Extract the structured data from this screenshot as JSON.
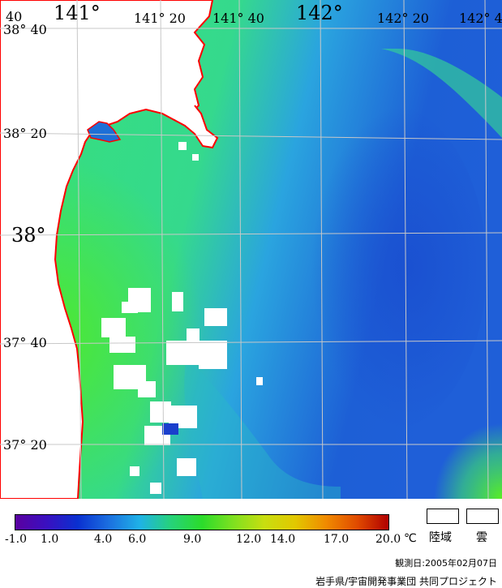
{
  "map": {
    "colors": {
      "land": "#ffffff",
      "coastline": "#ff0000",
      "grid": "#c8c8c8",
      "cloud": "#ffffff",
      "sea_warm_south": "#55ee2a",
      "sea_mid": "#33dd66",
      "sea_cool": "#2f9be8",
      "sea_cold": "#1f5fd8"
    },
    "longitude_labels": [
      "141°",
      "141° 20",
      "141° 40",
      "142°",
      "142° 20",
      "142° 4"
    ],
    "latitude_labels": [
      "38° 40",
      "38° 20",
      "38°",
      "37° 40",
      "37° 20"
    ],
    "corner_label": "40"
  },
  "legend": {
    "colorbar_colors": [
      "#5a00a0",
      "#3a10c0",
      "#0a30d0",
      "#1b6fe0",
      "#1fb2e6",
      "#26d27a",
      "#2bdc2b",
      "#7ee020",
      "#c8de10",
      "#e2c800",
      "#f08a00",
      "#e04a00",
      "#b00000"
    ],
    "tick_labels": [
      "-1.0",
      "1.0",
      "4.0",
      "6.0",
      "9.0",
      "12.0",
      "14.0",
      "17.0",
      "20.0"
    ],
    "tick_values": [
      -1.0,
      1.0,
      4.0,
      6.0,
      9.0,
      12.0,
      14.0,
      17.0,
      20.0
    ],
    "unit": "℃",
    "land_label": "陸域",
    "cloud_label": "雲"
  },
  "observation_date": "観測日:2005年02月07日",
  "credit": "岩手県/宇宙開発事業団 共同プロジェクト"
}
